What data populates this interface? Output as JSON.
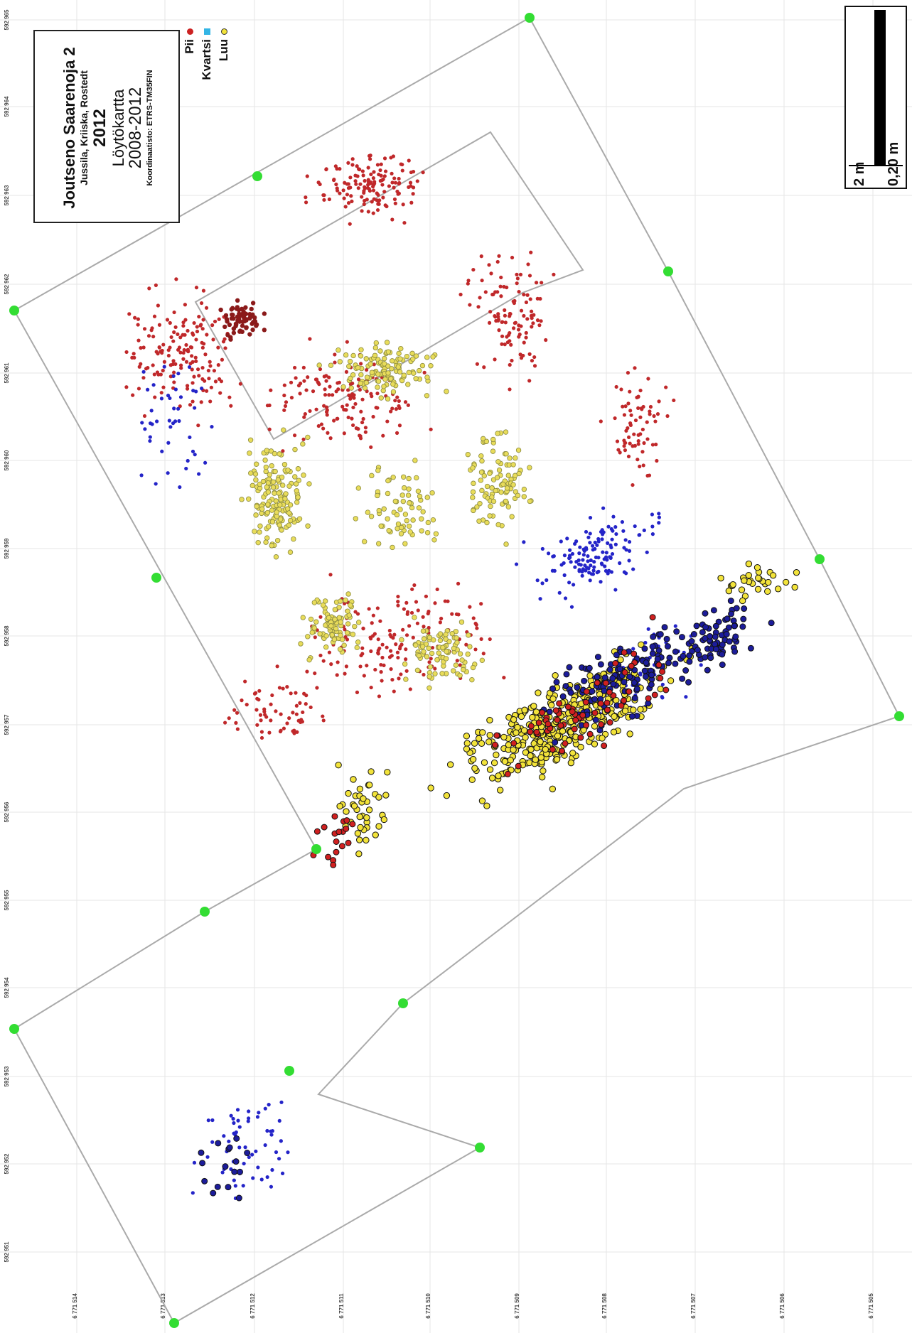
{
  "title": {
    "site": "Joutseno Saarenoja 2",
    "authors": "Jussila, Kriiska, Rostedt",
    "year": "2012",
    "map_name": "Löytökartta",
    "period": "2008-2012",
    "crs": "Koordinaatisto: ETRS-TM35FIN"
  },
  "legend": [
    {
      "label": "Pii",
      "color": "#cc2222",
      "shape": "dot"
    },
    {
      "label": "Kvartsi",
      "color": "#33b5e5",
      "shape": "square"
    },
    {
      "label": "Luu",
      "color": "#f2e33a",
      "shape": "circle-outline"
    }
  ],
  "scale": {
    "label_main": "2 m",
    "label_sub": "0,20 m"
  },
  "grid": {
    "top_labels": [
      "592 965",
      "592 964",
      "592 963",
      "592 962",
      "592 961",
      "592 960",
      "592 959",
      "592 958",
      "592 957",
      "592 956",
      "592 955",
      "592 954",
      "592 953",
      "592 952",
      "592 951"
    ],
    "bottom_labels": [
      "6 771 514",
      "6 771 513",
      "6 771 512",
      "6 771 511",
      "6 771 510",
      "6 771 509",
      "6 771 508",
      "6 771 507",
      "6 771 506",
      "6 771 505"
    ]
  },
  "colors": {
    "pii": "#c0282a",
    "pii_dark": "#8b1a1a",
    "kvartsi": "#2424c8",
    "luu": "#f2e33a",
    "corner": "#33dd33",
    "outline": "#aaaaaa"
  }
}
